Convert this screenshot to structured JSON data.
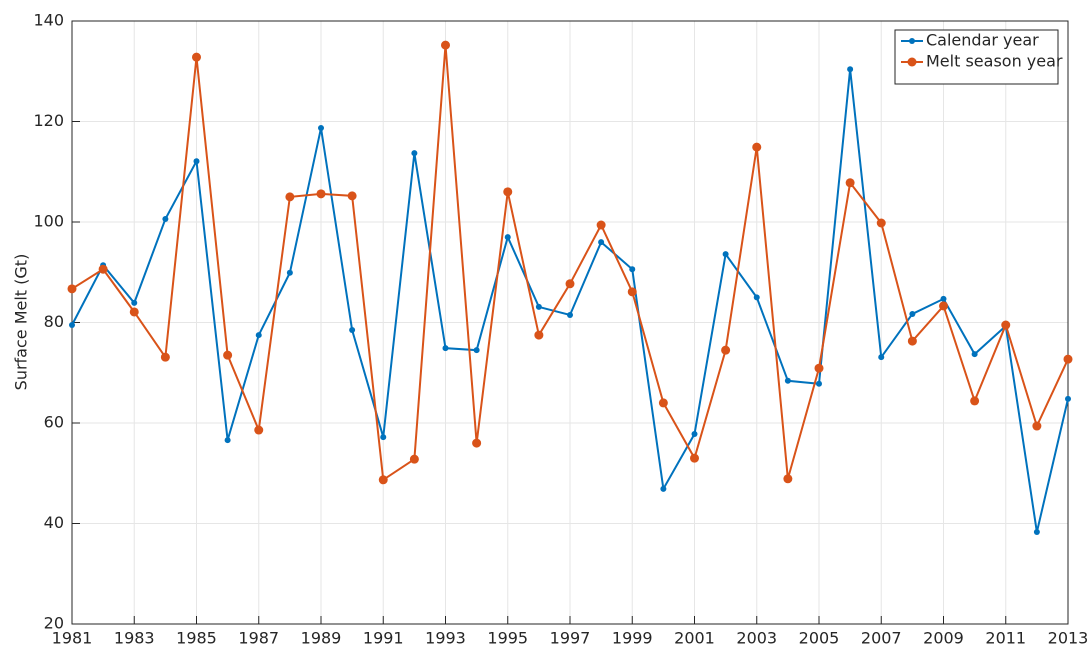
{
  "chart_data": {
    "type": "line",
    "ylabel": "Surface Melt (Gt)",
    "x": [
      1981,
      1982,
      1983,
      1984,
      1985,
      1986,
      1987,
      1988,
      1989,
      1990,
      1991,
      1992,
      1993,
      1994,
      1995,
      1996,
      1997,
      1998,
      1999,
      2000,
      2001,
      2002,
      2003,
      2004,
      2005,
      2006,
      2007,
      2008,
      2009,
      2010,
      2011,
      2012,
      2013
    ],
    "series": [
      {
        "name": "Calendar year",
        "color": "#0072bd",
        "values": [
          79.5,
          91.4,
          83.9,
          100.6,
          112.1,
          56.6,
          77.5,
          89.9,
          118.7,
          78.5,
          57.2,
          113.7,
          74.9,
          74.5,
          97,
          83.1,
          81.5,
          96,
          90.6,
          46.9,
          57.8,
          93.6,
          85,
          68.4,
          67.8,
          130.4,
          73.1,
          81.7,
          84.7,
          73.7,
          79.3,
          38.3,
          64.8
        ]
      },
      {
        "name": "Melt season year",
        "color": "#d95319",
        "values": [
          86.7,
          90.6,
          82.1,
          73.1,
          132.8,
          73.5,
          58.6,
          105,
          105.6,
          105.2,
          48.7,
          52.8,
          135.2,
          56,
          106,
          77.5,
          87.7,
          99.4,
          86.1,
          64,
          53,
          74.5,
          114.9,
          48.9,
          70.9,
          107.8,
          99.8,
          76.3,
          83.3,
          64.4,
          79.5,
          59.4,
          72.7
        ]
      }
    ],
    "xlim": [
      1981,
      2013
    ],
    "xticks": [
      1981,
      1983,
      1985,
      1987,
      1989,
      1991,
      1993,
      1995,
      1997,
      1999,
      2001,
      2003,
      2005,
      2007,
      2009,
      2011,
      2013
    ],
    "ylim": [
      20,
      140
    ],
    "yticks": [
      20,
      40,
      60,
      80,
      100,
      120,
      140
    ],
    "grid": true,
    "legend": "northeast"
  }
}
